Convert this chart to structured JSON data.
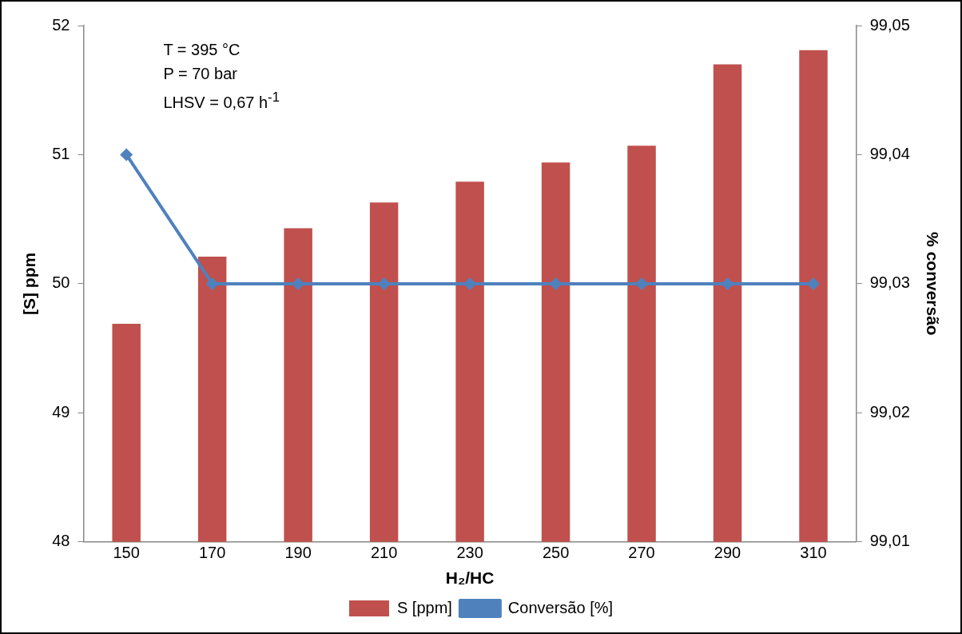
{
  "chart_data": {
    "type": "bar",
    "xlabel": "H₂/HC",
    "ylabel": "[S] ppm",
    "y2label": "% conversão",
    "categories": [
      "150",
      "170",
      "190",
      "210",
      "230",
      "250",
      "270",
      "290",
      "310"
    ],
    "series": [
      {
        "name": "S [ppm]",
        "color": "#c0504d",
        "values": [
          49.69,
          50.21,
          50.43,
          50.63,
          50.79,
          50.94,
          51.07,
          51.7,
          51.81
        ]
      },
      {
        "name": "Conversão [%]",
        "type": "line",
        "axis": "y2",
        "color": "#4f81bd",
        "values": [
          99.04,
          99.03,
          99.03,
          99.03,
          99.03,
          99.03,
          99.03,
          99.03,
          99.03
        ]
      }
    ],
    "ylim": [
      48,
      52
    ],
    "yticks": [
      48,
      49,
      50,
      51,
      52
    ],
    "y2lim": [
      99.01,
      99.05
    ],
    "y2ticks": [
      {
        "value": 99.01,
        "label": "99,01"
      },
      {
        "value": 99.02,
        "label": "99,02"
      },
      {
        "value": 99.03,
        "label": "99,03"
      },
      {
        "value": 99.04,
        "label": "99,04"
      },
      {
        "value": 99.05,
        "label": "99,05"
      }
    ],
    "annotations": [
      "T = 395 °C",
      "P = 70 bar",
      "LHSV = 0,67 h$^{-1}$"
    ],
    "legend": "bottom",
    "grid": false,
    "marker": "diamond",
    "line_style": "solid"
  }
}
